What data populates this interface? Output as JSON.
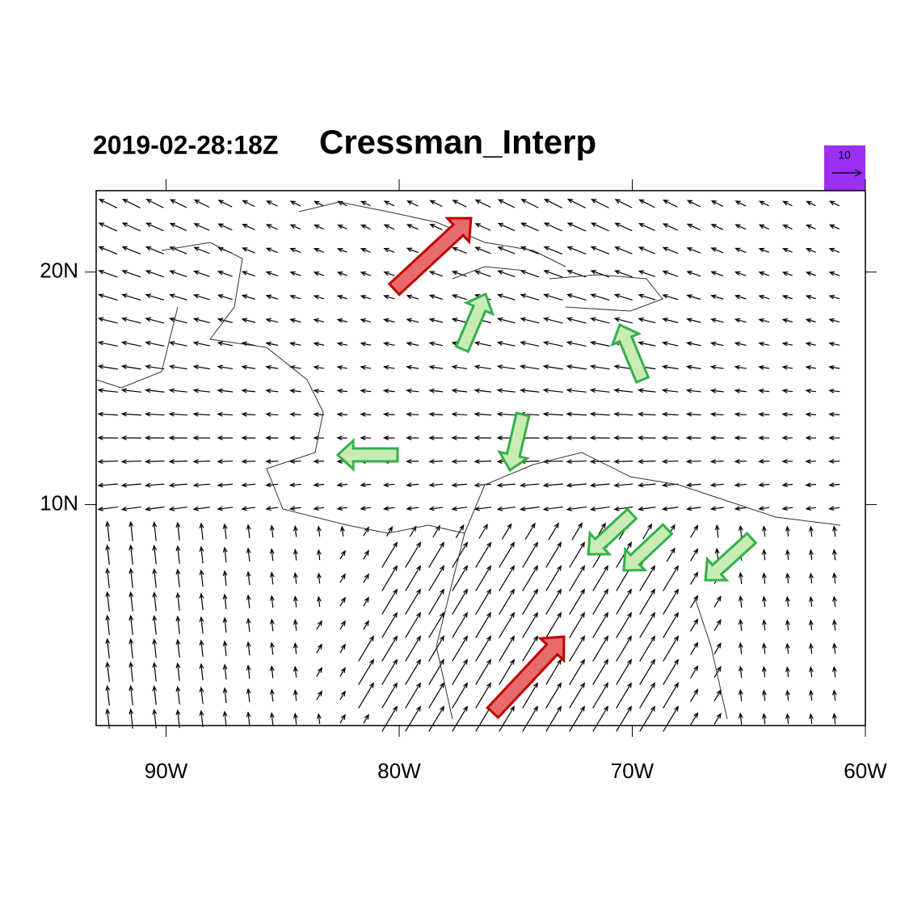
{
  "map": {
    "title_date": "2019-02-28:18Z",
    "title": "Cressman_Interp",
    "xlim": [
      -93,
      -60
    ],
    "ylim": [
      0.5,
      23.5
    ],
    "xticks": [
      {
        "value": -90,
        "label": "90W"
      },
      {
        "value": -80,
        "label": "80W"
      },
      {
        "value": -70,
        "label": "70W"
      },
      {
        "value": -60,
        "label": "60W"
      }
    ],
    "yticks": [
      {
        "value": 10,
        "label": "10N"
      },
      {
        "value": 20,
        "label": "20N"
      }
    ],
    "reference_vector": 10
  }
}
